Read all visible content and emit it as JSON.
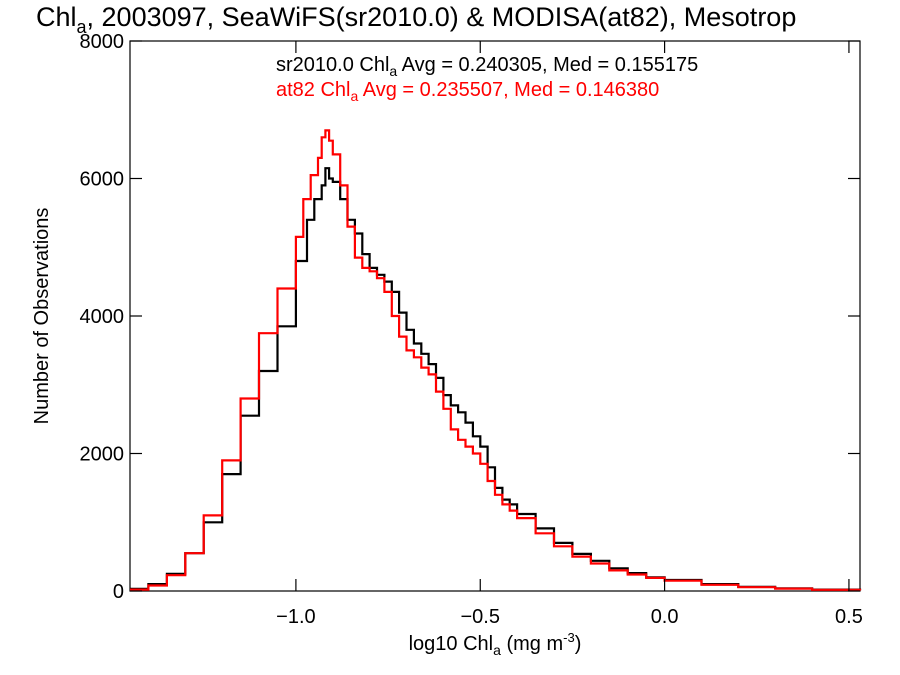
{
  "chart_data": {
    "type": "line",
    "title": {
      "main": "Chl",
      "main_sub": "a",
      "rest": ", 2003097, SeaWiFS(sr2010.0) & MODISA(at82), Mesotrop"
    },
    "xlabel": {
      "pre": "log10 Chl",
      "sub": "a",
      "mid": " (mg m",
      "sup": "-3",
      "post": ")"
    },
    "ylabel": "Number of Observations",
    "xlim": [
      -1.45,
      0.53
    ],
    "ylim": [
      0,
      8000
    ],
    "xticks": [
      -1.0,
      -0.5,
      0.0,
      0.5
    ],
    "xtick_labels": [
      "−1.0",
      "−0.5",
      "0.0",
      "0.5"
    ],
    "yticks": [
      0,
      2000,
      4000,
      6000,
      8000
    ],
    "ytick_labels": [
      "0",
      "2000",
      "4000",
      "6000",
      "8000"
    ],
    "grid": false,
    "legend_position": "top-right",
    "series": [
      {
        "name": "sr2010.0",
        "color": "#000000",
        "label_parts": {
          "pre": "sr2010.0 Chl",
          "sub": "a",
          "post": " Avg = 0.240305, Med = 0.155175"
        },
        "x": [
          -1.45,
          -1.4,
          -1.35,
          -1.3,
          -1.25,
          -1.2,
          -1.15,
          -1.1,
          -1.05,
          -1.0,
          -0.97,
          -0.95,
          -0.93,
          -0.92,
          -0.91,
          -0.9,
          -0.88,
          -0.86,
          -0.84,
          -0.82,
          -0.8,
          -0.78,
          -0.76,
          -0.74,
          -0.72,
          -0.7,
          -0.68,
          -0.66,
          -0.64,
          -0.62,
          -0.6,
          -0.58,
          -0.56,
          -0.54,
          -0.52,
          -0.5,
          -0.48,
          -0.46,
          -0.44,
          -0.42,
          -0.4,
          -0.35,
          -0.3,
          -0.25,
          -0.2,
          -0.15,
          -0.1,
          -0.05,
          0.0,
          0.1,
          0.2,
          0.3,
          0.4,
          0.53
        ],
        "y": [
          30,
          100,
          250,
          550,
          1000,
          1700,
          2550,
          3200,
          3850,
          4800,
          5400,
          5700,
          5900,
          6150,
          6000,
          5950,
          5700,
          5400,
          5200,
          4900,
          4700,
          4600,
          4500,
          4350,
          4050,
          3800,
          3600,
          3450,
          3300,
          3100,
          2850,
          2700,
          2600,
          2450,
          2250,
          2100,
          1800,
          1500,
          1330,
          1260,
          1120,
          910,
          700,
          540,
          440,
          330,
          260,
          200,
          160,
          100,
          60,
          40,
          20,
          10
        ]
      },
      {
        "name": "at82",
        "color": "#ff0000",
        "label_parts": {
          "pre": "at82 Chl",
          "sub": "a",
          "post": " Avg = 0.235507, Med = 0.146380"
        },
        "x": [
          -1.45,
          -1.4,
          -1.35,
          -1.3,
          -1.25,
          -1.2,
          -1.15,
          -1.1,
          -1.05,
          -1.0,
          -0.98,
          -0.96,
          -0.94,
          -0.93,
          -0.92,
          -0.91,
          -0.9,
          -0.88,
          -0.86,
          -0.84,
          -0.82,
          -0.8,
          -0.78,
          -0.76,
          -0.74,
          -0.72,
          -0.7,
          -0.68,
          -0.66,
          -0.64,
          -0.62,
          -0.6,
          -0.58,
          -0.56,
          -0.54,
          -0.52,
          -0.5,
          -0.48,
          -0.46,
          -0.44,
          -0.42,
          -0.4,
          -0.35,
          -0.3,
          -0.25,
          -0.2,
          -0.15,
          -0.1,
          -0.05,
          0.0,
          0.1,
          0.2,
          0.3,
          0.4,
          0.53
        ],
        "y": [
          20,
          80,
          230,
          550,
          1100,
          1900,
          2800,
          3750,
          4400,
          5150,
          5700,
          6050,
          6300,
          6600,
          6700,
          6550,
          6350,
          5900,
          5300,
          4850,
          4700,
          4650,
          4550,
          4350,
          4000,
          3700,
          3500,
          3400,
          3250,
          3150,
          2900,
          2650,
          2350,
          2200,
          2100,
          2000,
          1850,
          1600,
          1400,
          1260,
          1170,
          1060,
          840,
          650,
          500,
          400,
          300,
          240,
          190,
          150,
          90,
          55,
          35,
          18,
          8
        ]
      }
    ]
  }
}
